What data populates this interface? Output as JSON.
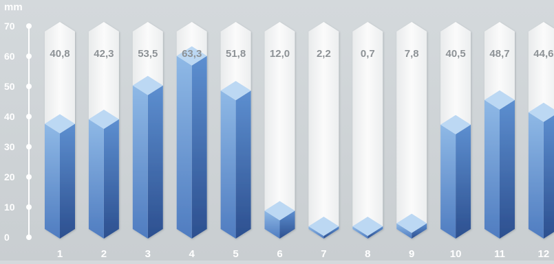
{
  "chart_data": {
    "type": "bar",
    "unit_label": "mm",
    "categories": [
      "1",
      "2",
      "3",
      "4",
      "5",
      "6",
      "7",
      "8",
      "9",
      "10",
      "11",
      "12"
    ],
    "values": [
      40.8,
      42.3,
      53.5,
      63.3,
      51.8,
      12.0,
      2.2,
      0.7,
      7.8,
      40.5,
      48.7,
      44.6
    ],
    "value_labels": [
      "40,8",
      "42,3",
      "53,5",
      "63,3",
      "51,8",
      "12,0",
      "2,2",
      "0,7",
      "7,8",
      "40,5",
      "48,7",
      "44,6"
    ],
    "yticks": [
      0,
      10,
      20,
      30,
      40,
      50,
      60,
      70
    ],
    "ylim": [
      0,
      70
    ],
    "colors": {
      "bar_light": "#8fb9e6",
      "bar_dark": "#2c4f8f",
      "bar_top": "#bcd8f3",
      "track": "#f3f4f5",
      "axis": "#ffffff",
      "value_text": "#8d9296"
    }
  }
}
